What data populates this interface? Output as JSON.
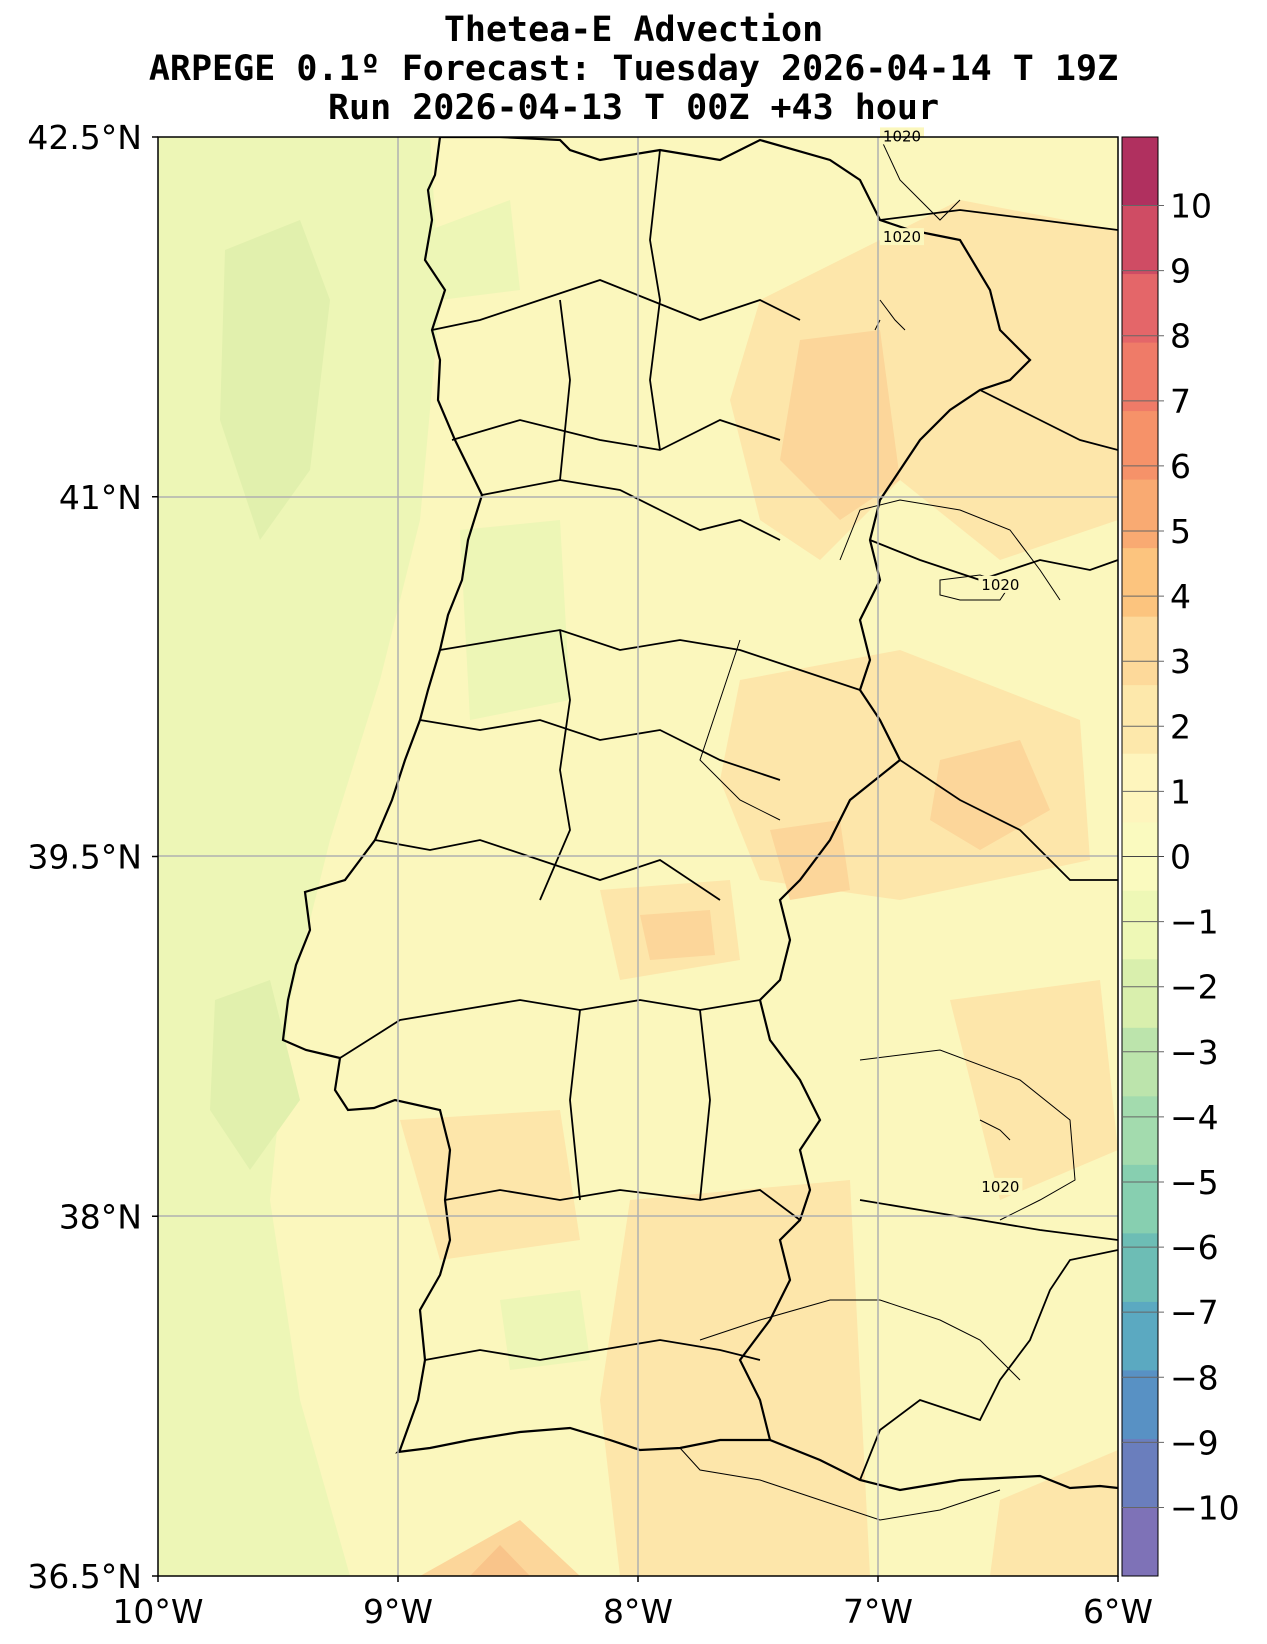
{
  "title_lines": [
    "Thetea-E Advection",
    "ARPEGE 0.1º Forecast: Tuesday 2026-04-14 T 19Z",
    "Run 2026-04-13 T 00Z +43 hour"
  ],
  "chart_data": {
    "type": "heatmap",
    "title": "Thetea-E Advection",
    "subtitle": "ARPEGE 0.1º Forecast: Tuesday 2026-04-14 T 19Z | Run 2026-04-13 T 00Z +43 hour",
    "lon_range": [
      -10,
      -6
    ],
    "lat_range": [
      36.5,
      42.5
    ],
    "x_ticks": [
      "10°W",
      "9°W",
      "8°W",
      "7°W",
      "6°W"
    ],
    "y_ticks": [
      "36.5°N",
      "38°N",
      "39.5°N",
      "41°N",
      "42.5°N"
    ],
    "grid": true,
    "colorbar": {
      "position": "right",
      "ticks": [
        "10",
        "9",
        "8",
        "7",
        "6",
        "5",
        "4",
        "3",
        "2",
        "1",
        "0",
        "−1",
        "−2",
        "−3",
        "−4",
        "−5",
        "−6",
        "−7",
        "−8",
        "−9",
        "−10"
      ],
      "values": [
        10,
        9,
        8,
        7,
        6,
        5,
        4,
        3,
        2,
        1,
        0,
        -1,
        -2,
        -3,
        -4,
        -5,
        -6,
        -7,
        -8,
        -9,
        -10
      ],
      "colors": [
        "#b0305f",
        "#cf4c64",
        "#e46669",
        "#ef7b68",
        "#f69269",
        "#f9aa72",
        "#fcc47e",
        "#fdd99a",
        "#fde8ab",
        "#fef5bd",
        "#fafabf",
        "#eef8b6",
        "#d9efad",
        "#bce4ac",
        "#a3dbae",
        "#87cfb0",
        "#6dbdb5",
        "#5ba9c1",
        "#5891c4",
        "#6a7ebd",
        "#7e72b7"
      ]
    },
    "isobars": [
      {
        "label": "1020",
        "lon": -6.9,
        "lat": 42.49
      },
      {
        "label": "1020",
        "lon": -6.9,
        "lat": 42.07
      },
      {
        "label": "1020",
        "lon": -6.49,
        "lat": 40.62
      },
      {
        "label": "1020",
        "lon": -6.49,
        "lat": 38.11
      }
    ],
    "regions": [
      {
        "lon": -6.45,
        "lat": 39.75,
        "value": 4
      },
      {
        "lon": -6.45,
        "lat": 39.75,
        "value": 3
      },
      {
        "lon": -7.2,
        "lat": 39.45,
        "value": 4
      },
      {
        "lon": -7.1,
        "lat": 41.8,
        "value": 3
      },
      {
        "lon": -8.0,
        "lat": 39.2,
        "value": 3
      },
      {
        "lon": -8.6,
        "lat": 36.55,
        "value": 4
      },
      {
        "lon": -9.6,
        "lat": 41.6,
        "value": -2
      },
      {
        "lon": -9.5,
        "lat": 38.7,
        "value": -2
      },
      {
        "lon": -8.3,
        "lat": 37.5,
        "value": -2
      }
    ]
  }
}
